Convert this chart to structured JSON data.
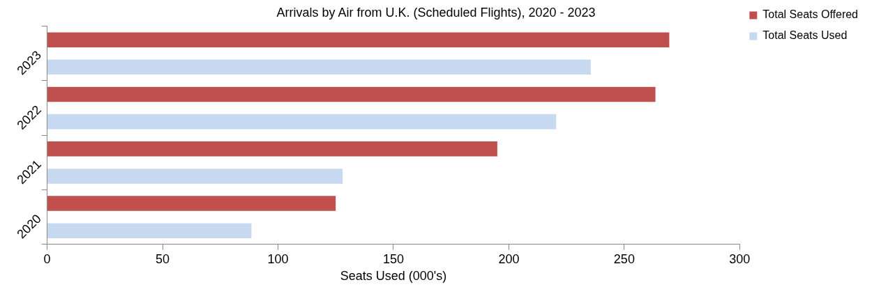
{
  "chart_data": {
    "type": "bar",
    "orientation": "horizontal",
    "title": "Arrivals by Air from U.K. (Scheduled Flights), 2020 - 2023",
    "xlabel": "Seats Used (000's)",
    "categories": [
      "2023",
      "2022",
      "2021",
      "2020"
    ],
    "series": [
      {
        "name": "Total Seats Offered",
        "color": "#c0504d",
        "values": [
          269.5,
          263.5,
          195,
          125
        ]
      },
      {
        "name": "Total Seats Used",
        "color": "#c6d9f1",
        "values": [
          235.5,
          220.5,
          128,
          88.5
        ]
      }
    ],
    "xlim": [
      0,
      300
    ],
    "xticks": [
      0,
      50,
      100,
      150,
      200,
      250,
      300
    ],
    "grid": false,
    "legend": "top right"
  }
}
